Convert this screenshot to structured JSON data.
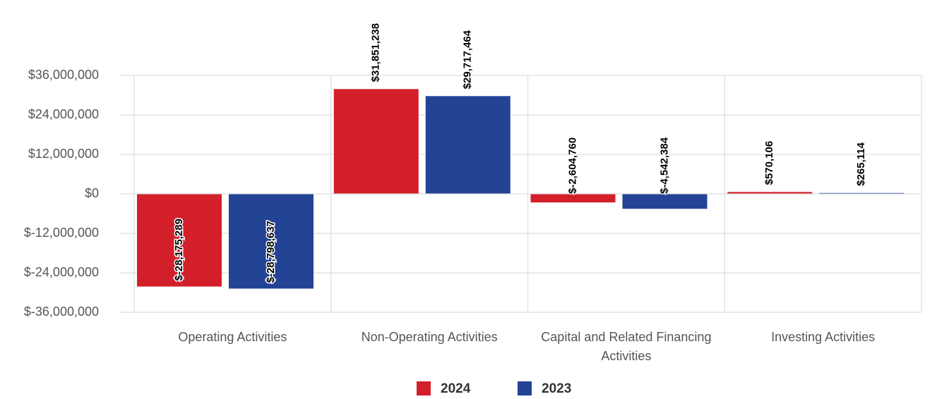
{
  "chart_data": {
    "type": "bar",
    "categories": [
      "Operating Activities",
      "Non-Operating Activities",
      "Capital and Related Financing Activities",
      "Investing Activities"
    ],
    "series": [
      {
        "name": "2024",
        "color": "#d31f2a",
        "values": [
          -28175289,
          31851238,
          -2604760,
          570106
        ],
        "value_labels": [
          "$-28,175,289",
          "$31,851,238",
          "$-2,604,760",
          "$570,106"
        ]
      },
      {
        "name": "2023",
        "color": "#234395",
        "values": [
          -28798637,
          29717464,
          -4542384,
          265114
        ],
        "value_labels": [
          "$-28,798,637",
          "$29,717,464",
          "$-4,542,384",
          "$265,114"
        ]
      }
    ],
    "ylim": [
      -36000000,
      36000000
    ],
    "yticks": [
      {
        "value": -36000000,
        "label": "$-36,000,000"
      },
      {
        "value": -24000000,
        "label": "$-24,000,000"
      },
      {
        "value": -12000000,
        "label": "$-12,000,000"
      },
      {
        "value": 0,
        "label": "$0"
      },
      {
        "value": 12000000,
        "label": "$12,000,000"
      },
      {
        "value": 24000000,
        "label": "$24,000,000"
      },
      {
        "value": 36000000,
        "label": "$36,000,000"
      }
    ],
    "grid": true,
    "legend": "bottom"
  }
}
